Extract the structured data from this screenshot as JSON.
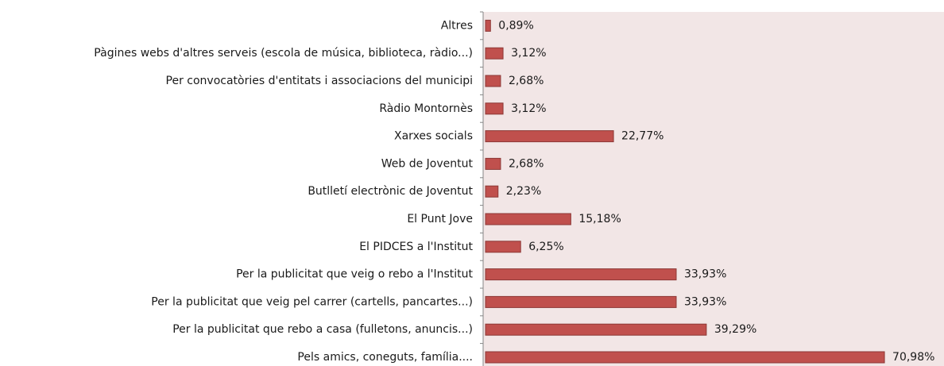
{
  "chart_data": {
    "type": "bar",
    "orientation": "horizontal",
    "categories": [
      "Altres",
      "Pàgines webs d'altres serveis (escola de música, biblioteca, ràdio...)",
      "Per convocatòries d'entitats i associacions del municipi",
      "Ràdio Montornès",
      "Xarxes socials",
      "Web de Joventut",
      "Butlletí electrònic de Joventut",
      "El Punt Jove",
      "El PIDCES a l'Institut",
      "Per la publicitat que veig o rebo a l'Institut",
      "Per la publicitat que veig pel carrer (cartells, pancartes...)",
      "Per la publicitat que rebo a casa (fulletons, anuncis...)",
      "Pels amics, coneguts, família...."
    ],
    "values": [
      0.89,
      3.12,
      2.68,
      3.12,
      22.77,
      2.68,
      2.23,
      15.18,
      6.25,
      33.93,
      33.93,
      39.29,
      70.98
    ],
    "value_labels": [
      "0,89%",
      "3,12%",
      "2,68%",
      "3,12%",
      "22,77%",
      "2,68%",
      "2,23%",
      "15,18%",
      "6,25%",
      "33,93%",
      "33,93%",
      "39,29%",
      "70,98%"
    ],
    "color": "#c0504d",
    "xlim": [
      0,
      82
    ]
  }
}
